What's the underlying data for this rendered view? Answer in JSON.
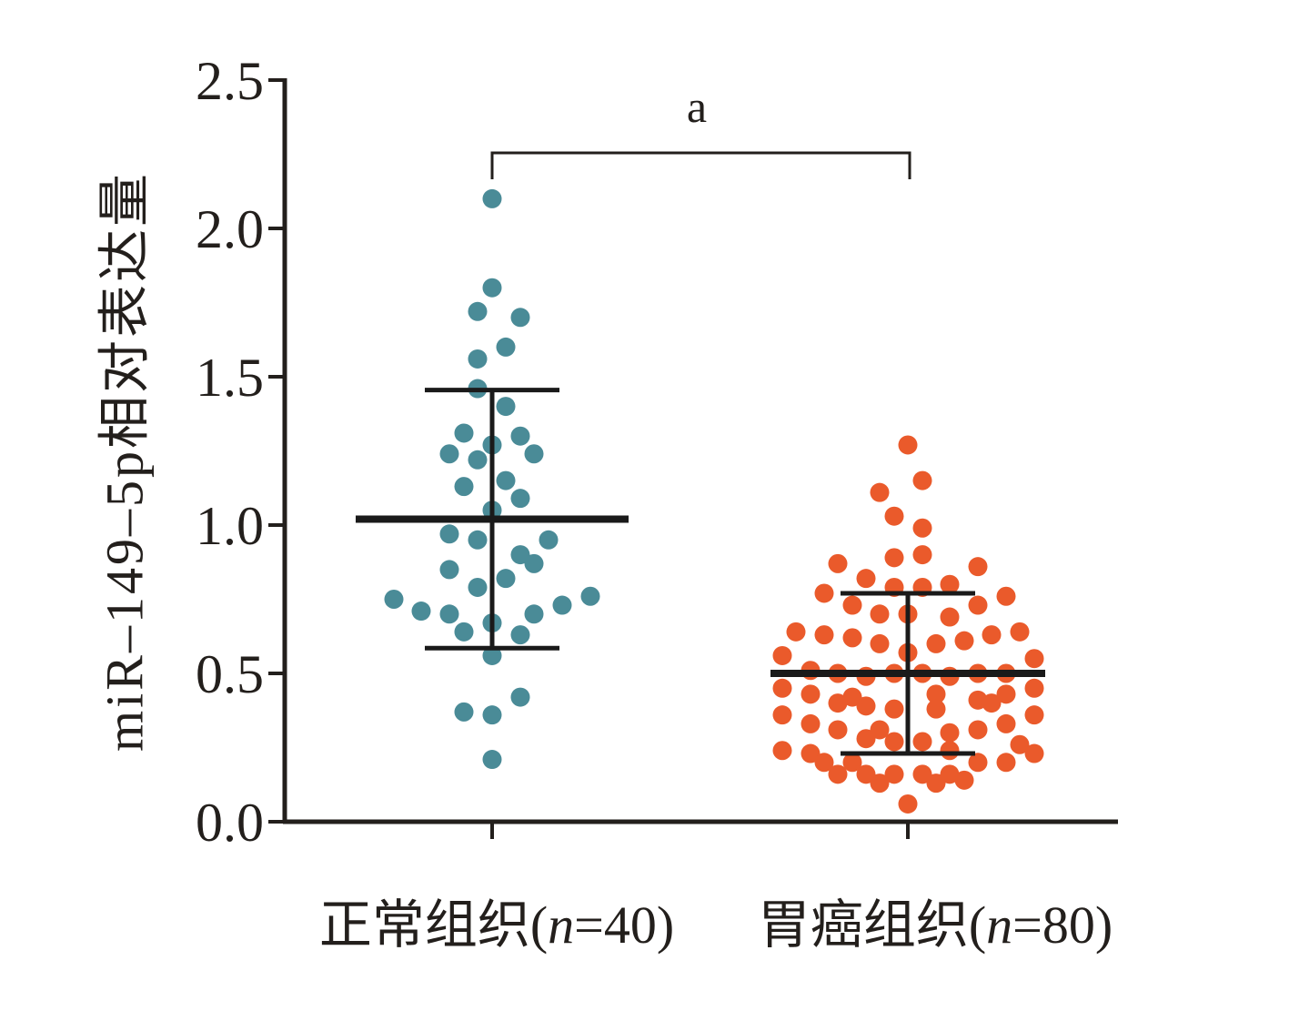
{
  "chart_data": {
    "type": "scatter",
    "xlabel": "",
    "ylabel": "miR–149–5p相对表达量",
    "ylim": [
      0,
      2.5
    ],
    "yticks": [
      0,
      0.5,
      1,
      1.5,
      2,
      2.5
    ],
    "ytick_labels": [
      "0.0",
      "0.5",
      "1.0",
      "1.5",
      "2.0",
      "2.5"
    ],
    "categories": [
      "正常组织(n=40)",
      "胃癌组织(n=80)"
    ],
    "grid": false,
    "legend": "none",
    "series": [
      {
        "category": "正常组织(n=40)",
        "color": "#4a8b97",
        "mean": 1.02,
        "sd": 0.435,
        "values": [
          2.1,
          1.8,
          1.72,
          1.7,
          1.6,
          1.56,
          1.46,
          1.4,
          1.31,
          1.3,
          1.27,
          1.24,
          1.22,
          1.24,
          1.15,
          1.13,
          1.09,
          1.05,
          0.97,
          0.95,
          0.95,
          0.9,
          0.87,
          0.85,
          0.82,
          0.79,
          0.75,
          0.76,
          0.73,
          0.71,
          0.7,
          0.7,
          0.67,
          0.64,
          0.63,
          0.56,
          0.42,
          0.37,
          0.36,
          0.21
        ]
      },
      {
        "category": "胃癌组织(n=80)",
        "color": "#ea5a2b",
        "mean": 0.5,
        "sd": 0.27,
        "values": [
          1.27,
          1.15,
          1.11,
          1.03,
          0.99,
          0.87,
          0.89,
          0.9,
          0.86,
          0.82,
          0.79,
          0.79,
          0.8,
          0.77,
          0.76,
          0.73,
          0.73,
          0.7,
          0.7,
          0.69,
          0.64,
          0.63,
          0.62,
          0.61,
          0.63,
          0.64,
          0.6,
          0.6,
          0.56,
          0.57,
          0.55,
          0.51,
          0.5,
          0.49,
          0.5,
          0.5,
          0.49,
          0.5,
          0.5,
          0.45,
          0.45,
          0.43,
          0.42,
          0.43,
          0.41,
          0.43,
          0.4,
          0.39,
          0.38,
          0.38,
          0.4,
          0.36,
          0.36,
          0.33,
          0.31,
          0.31,
          0.3,
          0.31,
          0.33,
          0.28,
          0.27,
          0.27,
          0.26,
          0.24,
          0.23,
          0.23,
          0.24,
          0.2,
          0.2,
          0.2,
          0.2,
          0.16,
          0.16,
          0.16,
          0.16,
          0.16,
          0.13,
          0.13,
          0.14,
          0.06
        ]
      }
    ],
    "annotation": {
      "label": "a",
      "between": [
        0,
        1
      ]
    }
  }
}
